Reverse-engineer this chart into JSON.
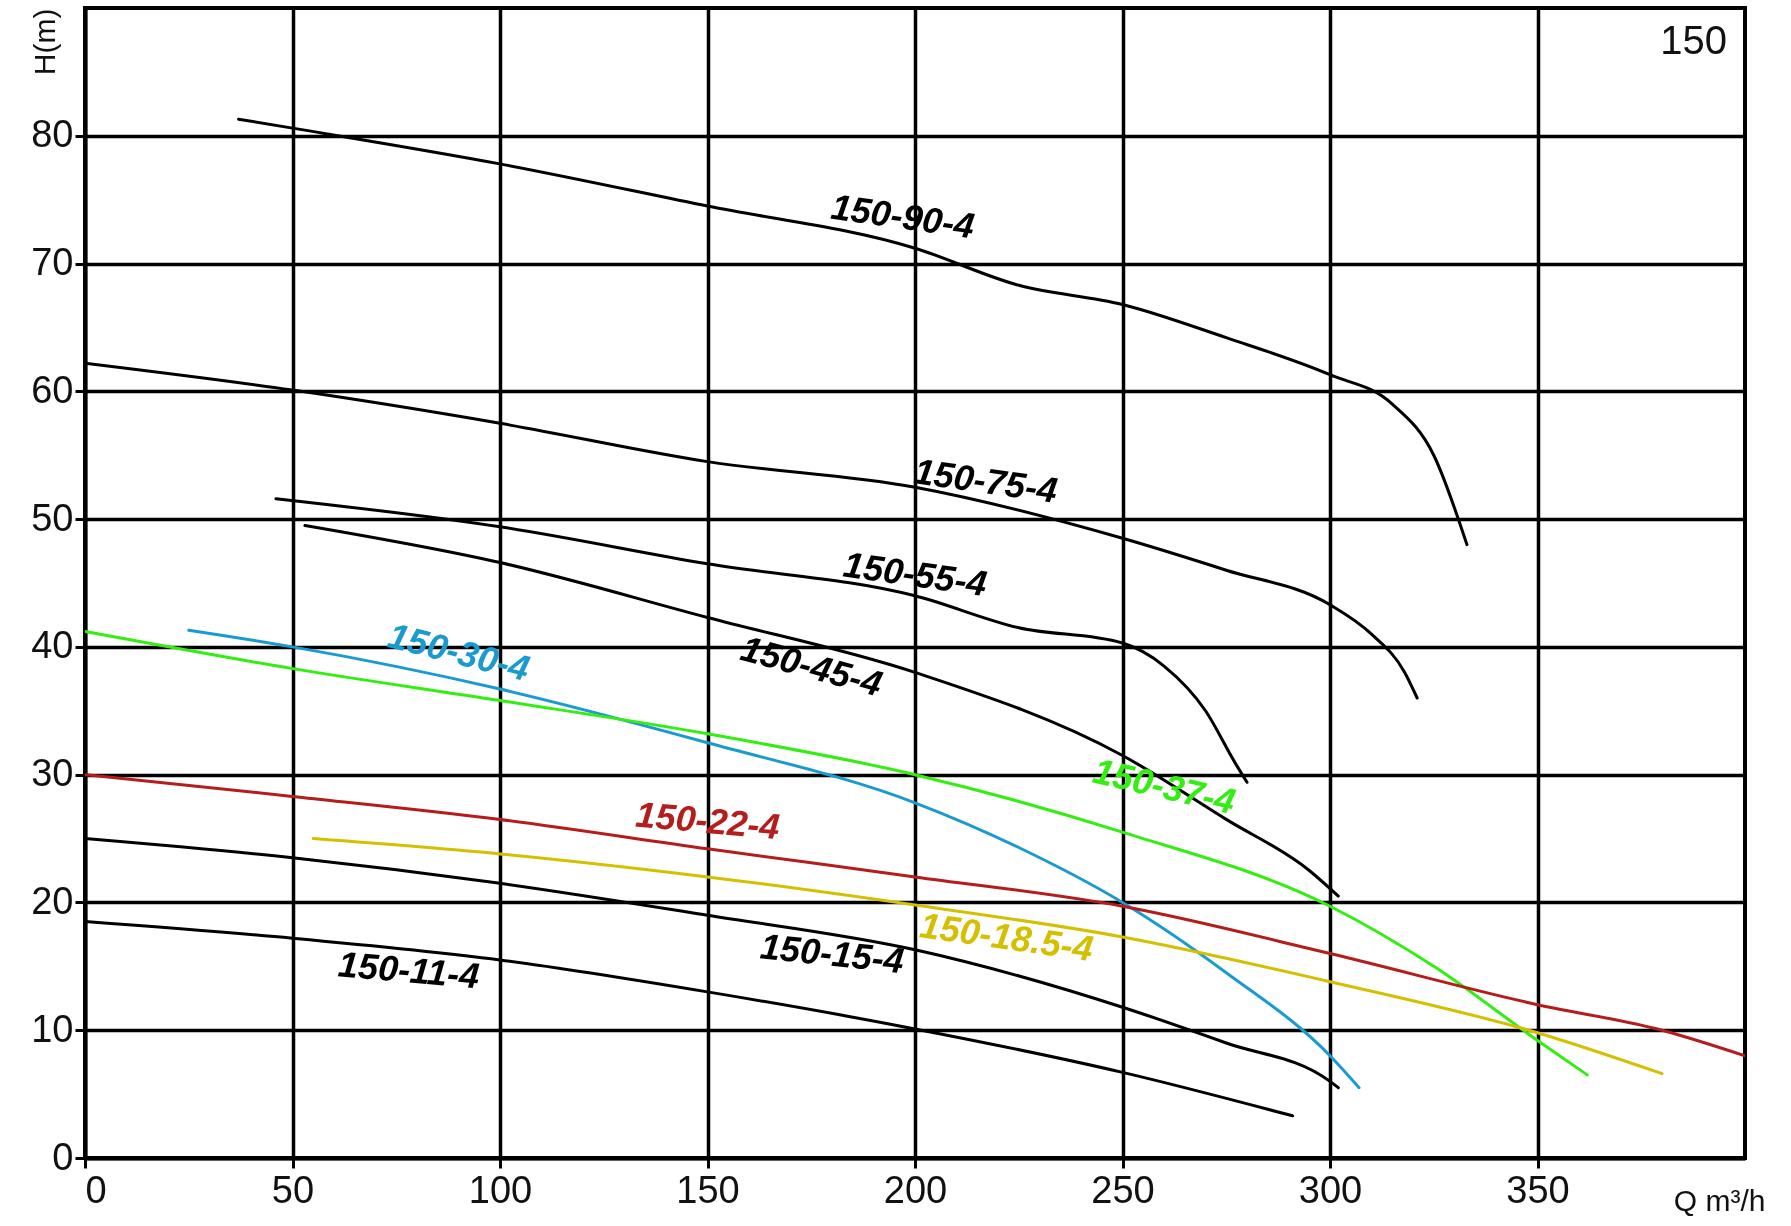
{
  "chart_data": {
    "type": "line",
    "xlabel": "Q m³/h",
    "ylabel": "H(m)",
    "annotations": [
      "150"
    ],
    "xlim": [
      0,
      400
    ],
    "ylim": [
      0,
      90
    ],
    "xticks": [
      0,
      50,
      100,
      150,
      200,
      250,
      300,
      350
    ],
    "yticks": [
      0,
      10,
      20,
      30,
      40,
      50,
      60,
      70,
      80
    ],
    "grid": true,
    "marker": "none",
    "line_style": "solid",
    "series": [
      {
        "name": "150-90-4",
        "color": "#000000",
        "x": [
          37,
          50,
          100,
          150,
          200,
          225,
          250,
          275,
          300,
          315,
          325,
          333
        ],
        "values": [
          81.3,
          80.6,
          77.8,
          74.5,
          71.2,
          68.3,
          66.8,
          64.2,
          61.3,
          59,
          55,
          48
        ]
      },
      {
        "name": "150-75-4",
        "color": "#000000",
        "x": [
          0,
          50,
          100,
          150,
          200,
          250,
          275,
          300,
          310,
          318,
          321
        ],
        "values": [
          62.2,
          60.1,
          57.5,
          54.5,
          52.5,
          48.5,
          46,
          43.3,
          41,
          38,
          36
        ]
      },
      {
        "name": "150-55-4",
        "color": "#000000",
        "x": [
          46,
          100,
          150,
          200,
          225,
          250,
          260,
          270,
          277,
          280
        ],
        "values": [
          51.6,
          49.4,
          46.5,
          44,
          41.5,
          40.3,
          38.5,
          35,
          31,
          29.4
        ]
      },
      {
        "name": "150-45-4",
        "color": "#000000",
        "x": [
          53,
          100,
          150,
          200,
          250,
          275,
          295,
          302
        ],
        "values": [
          49.5,
          46.6,
          42.3,
          38,
          31.5,
          26.5,
          22.5,
          20.5
        ]
      },
      {
        "name": "150-30-4",
        "color": "#1a9bd0",
        "x": [
          25,
          50,
          100,
          150,
          200,
          225,
          250,
          275,
          300,
          307
        ],
        "values": [
          41.3,
          40,
          36.7,
          32.5,
          27.8,
          24.3,
          20,
          14.5,
          8,
          5.5
        ]
      },
      {
        "name": "150-37-4",
        "color": "#33ee11",
        "x": [
          0,
          50,
          100,
          150,
          200,
          250,
          300,
          325,
          350,
          362
        ],
        "values": [
          41.2,
          38.3,
          35.8,
          33.2,
          30,
          25.5,
          19.7,
          15,
          9.2,
          6.5
        ]
      },
      {
        "name": "150-22-4",
        "color": "#b51c1c",
        "x": [
          0,
          50,
          100,
          150,
          200,
          250,
          300,
          350,
          380,
          400
        ],
        "values": [
          30,
          28.3,
          26.5,
          24.2,
          22,
          19.7,
          16,
          12,
          10,
          8
        ]
      },
      {
        "name": "150-18.5-4",
        "color": "#d4c000",
        "x": [
          55,
          100,
          150,
          200,
          250,
          300,
          350,
          380
        ],
        "values": [
          25,
          23.8,
          22,
          19.8,
          17.3,
          13.8,
          9.8,
          6.6
        ]
      },
      {
        "name": "150-15-4",
        "color": "#000000",
        "x": [
          0,
          50,
          100,
          150,
          200,
          250,
          275,
          300,
          302
        ],
        "values": [
          25,
          23.5,
          21.5,
          19,
          16.3,
          11.8,
          9,
          6,
          5.5
        ]
      },
      {
        "name": "150-11-4",
        "color": "#000000",
        "x": [
          0,
          50,
          100,
          150,
          200,
          250,
          291
        ],
        "values": [
          18.5,
          17.2,
          15.5,
          13,
          10.1,
          6.7,
          3.3
        ]
      }
    ]
  }
}
